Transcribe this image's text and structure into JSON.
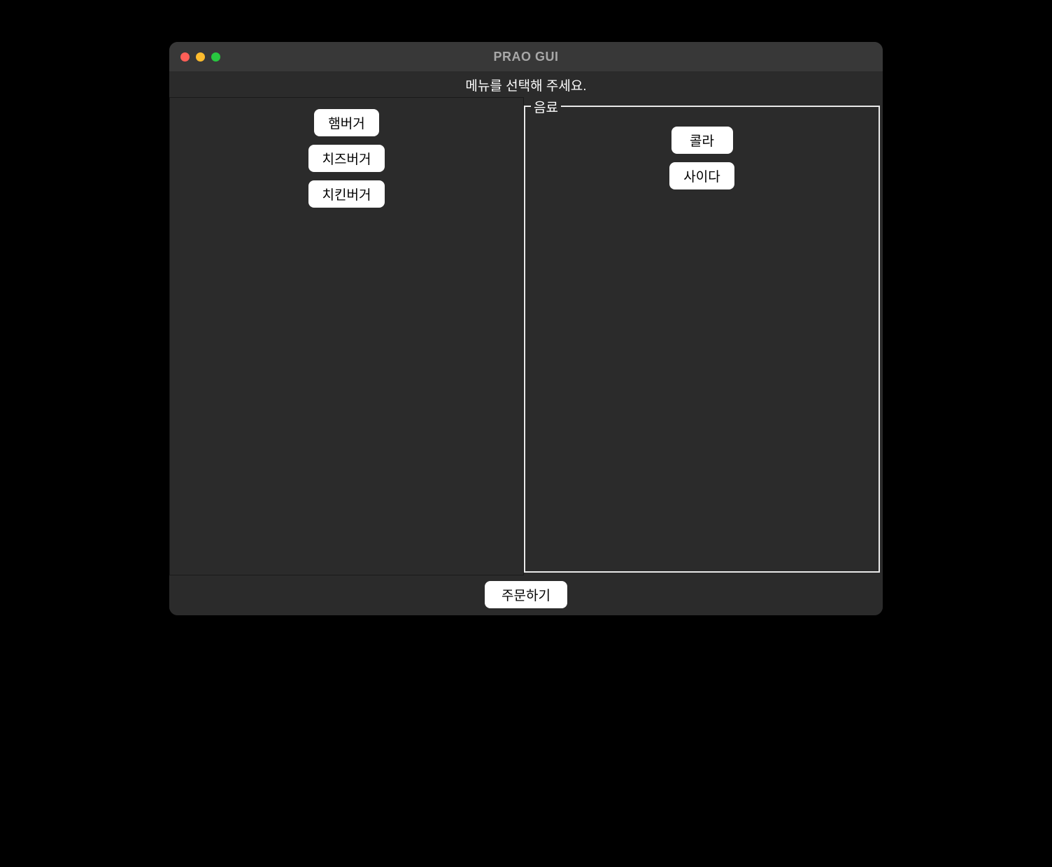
{
  "window": {
    "title": "PRAO GUI",
    "subtitle": "메뉴를 선택해 주세요."
  },
  "left_panel": {
    "buttons": [
      {
        "label": "햄버거"
      },
      {
        "label": "치즈버거"
      },
      {
        "label": "치킨버거"
      }
    ]
  },
  "right_panel": {
    "group_label": "음료",
    "buttons": [
      {
        "label": "콜라"
      },
      {
        "label": "사이다"
      }
    ]
  },
  "footer": {
    "order_label": "주문하기"
  },
  "colors": {
    "background": "#000000",
    "window_bg": "#2b2b2b",
    "titlebar_bg": "#383838",
    "title_text": "#a8a8a8",
    "body_text": "#ffffff",
    "button_bg": "#ffffff",
    "button_text": "#000000",
    "group_border": "#e9e9e9",
    "traffic_close": "#ff5f57",
    "traffic_minimize": "#febc2e",
    "traffic_maximize": "#28c840"
  }
}
